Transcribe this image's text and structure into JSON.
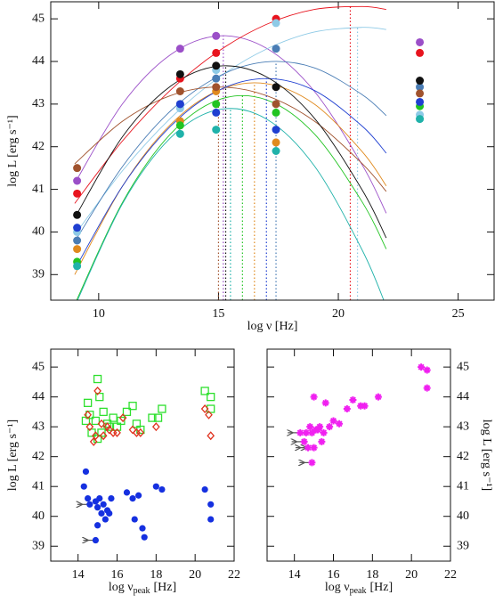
{
  "chart_data": [
    {
      "type": "line",
      "x_label": "log ν [Hz]",
      "y_label": "log L [erg s⁻¹]",
      "xlim": [
        8,
        26.5
      ],
      "ylim": [
        38.4,
        45.4
      ],
      "xticks": [
        10,
        15,
        20,
        25
      ],
      "yticks": [
        39,
        40,
        41,
        42,
        43,
        44,
        45
      ],
      "x": [
        9.1,
        13.4,
        14.9,
        17.4,
        23.4
      ],
      "fit_x": [
        9,
        11,
        13,
        15,
        17,
        19,
        21,
        22
      ],
      "series": [
        {
          "color": "#9b4fc8",
          "values": [
            41.2,
            44.3,
            44.6,
            null,
            44.45
          ],
          "fit": [
            41.14,
            43.01,
            44.16,
            44.6,
            44.31,
            43.3,
            41.57,
            40.44
          ],
          "peak_x": 15.2,
          "peak_y": 44.6
        },
        {
          "color": "#e8141e",
          "values": [
            40.9,
            43.6,
            44.2,
            45.0,
            44.2
          ],
          "fit": [
            40.67,
            42.14,
            43.33,
            44.24,
            44.87,
            45.22,
            45.29,
            45.22
          ],
          "peak_x": 20.5,
          "peak_y": 45.3
        },
        {
          "color": "#8ecae6",
          "values": [
            40.0,
            42.9,
            43.8,
            44.9,
            42.75
          ],
          "fit": [
            39.93,
            41.44,
            42.67,
            43.62,
            44.29,
            44.69,
            44.8,
            44.75
          ],
          "peak_x": 20.8,
          "peak_y": 44.8
        },
        {
          "color": "#4a7db5",
          "values": [
            39.8,
            43.0,
            43.6,
            44.3,
            43.4
          ],
          "fit": [
            39.77,
            41.54,
            42.84,
            43.65,
            43.99,
            43.85,
            43.22,
            42.73
          ],
          "peak_x": 17.4,
          "peak_y": 44.0
        },
        {
          "color": "#e08a1e",
          "values": [
            39.6,
            42.6,
            43.3,
            42.1,
            null
          ],
          "fit": [
            39.0,
            41.08,
            42.52,
            43.32,
            43.48,
            43.0,
            41.88,
            41.08
          ],
          "peak_x": 16.5,
          "peak_y": 43.5
        },
        {
          "color": "#22c422",
          "values": [
            39.3,
            42.5,
            43.0,
            42.8,
            42.95
          ],
          "fit": [
            38.3,
            40.7,
            42.3,
            43.1,
            43.1,
            42.3,
            40.7,
            39.6
          ],
          "peak_x": 16.0,
          "peak_y": 43.2
        },
        {
          "color": "#20b2aa",
          "values": [
            39.2,
            42.3,
            42.4,
            41.9,
            42.65
          ],
          "fit": [
            38.25,
            40.67,
            42.21,
            42.87,
            42.65,
            41.55,
            39.57,
            38.25
          ],
          "peak_x": 15.5,
          "peak_y": 42.9
        },
        {
          "color": "#a0522d",
          "values": [
            41.5,
            43.3,
            43.4,
            43.0,
            43.25
          ],
          "fit": [
            41.6,
            42.6,
            43.2,
            43.4,
            43.2,
            42.6,
            41.6,
            40.95
          ],
          "peak_x": 15.0,
          "peak_y": 43.4
        },
        {
          "color": "#1f3fd1",
          "values": [
            40.1,
            43.0,
            42.8,
            42.4,
            43.05
          ],
          "fit": [
            39.12,
            41.08,
            42.48,
            43.32,
            43.6,
            43.32,
            42.48,
            41.85
          ],
          "peak_x": 17.0,
          "peak_y": 43.6
        },
        {
          "color": "#111111",
          "values": [
            40.4,
            43.7,
            43.9,
            43.4,
            43.55
          ],
          "fit": [
            40.33,
            42.24,
            43.42,
            43.89,
            43.64,
            42.67,
            40.98,
            39.86
          ],
          "peak_x": 15.3,
          "peak_y": 43.9
        }
      ]
    },
    {
      "type": "scatter",
      "x_label": "log ν",
      "x_label_sub": "peak",
      "x_label_unit": "[Hz]",
      "y_label": "log L [erg s⁻¹]",
      "xlim": [
        12.6,
        22
      ],
      "ylim": [
        38.5,
        45.6
      ],
      "xticks": [
        14,
        16,
        18,
        20,
        22
      ],
      "yticks": [
        39,
        40,
        41,
        42,
        43,
        44,
        45
      ],
      "y_axis_side": "left",
      "series": [
        {
          "color": "#2ee02e",
          "marker": "square",
          "x": [
            15.0,
            15.1,
            14.5,
            14.6,
            14.9,
            15.3,
            15.5,
            15.8,
            16.0,
            16.5,
            16.8,
            17.0,
            17.2,
            17.8,
            18.1,
            18.3,
            20.5,
            20.8,
            20.8,
            14.7,
            15.2,
            15.6,
            14.4,
            16.2,
            15.0
          ],
          "y": [
            44.6,
            44.0,
            43.8,
            43.4,
            43.2,
            43.5,
            43.1,
            43.3,
            43.0,
            43.5,
            43.7,
            43.1,
            42.9,
            43.3,
            43.3,
            43.6,
            44.2,
            44.0,
            43.6,
            42.8,
            42.8,
            43.0,
            43.2,
            43.2,
            42.6
          ]
        },
        {
          "color": "#e0321e",
          "marker": "diamond",
          "x": [
            15.0,
            14.5,
            14.6,
            15.2,
            15.5,
            15.8,
            16.0,
            16.3,
            16.8,
            17.0,
            17.2,
            18.0,
            20.5,
            20.7,
            20.8,
            14.9,
            15.3,
            15.6,
            14.8
          ],
          "y": [
            44.2,
            43.4,
            43.0,
            43.1,
            43.0,
            42.8,
            42.8,
            43.3,
            42.9,
            42.8,
            42.8,
            43.0,
            43.6,
            43.4,
            42.7,
            42.7,
            42.7,
            42.9,
            42.5
          ]
        },
        {
          "color": "#1530e0",
          "marker": "circle",
          "x": [
            14.4,
            14.3,
            14.5,
            14.6,
            14.9,
            15.0,
            15.1,
            15.2,
            15.3,
            15.5,
            15.6,
            15.7,
            15.0,
            14.9,
            15.4,
            16.5,
            16.8,
            17.1,
            16.9,
            17.3,
            17.4,
            18.0,
            18.3,
            20.5,
            20.8,
            20.8
          ],
          "y": [
            41.5,
            41.0,
            40.6,
            40.4,
            40.5,
            40.3,
            40.6,
            40.1,
            40.4,
            40.2,
            40.1,
            40.6,
            39.7,
            39.2,
            39.9,
            40.8,
            40.6,
            40.7,
            39.9,
            39.6,
            39.3,
            41.0,
            40.9,
            40.9,
            40.4,
            39.9
          ],
          "x_upper_limit": [
            false,
            false,
            false,
            true,
            false,
            false,
            false,
            false,
            false,
            false,
            false,
            false,
            false,
            true,
            false,
            false,
            false,
            false,
            false,
            false,
            false,
            false,
            false,
            false,
            false,
            false
          ]
        }
      ]
    },
    {
      "type": "scatter",
      "x_label": "log ν",
      "x_label_sub": "peak",
      "x_label_unit": "[Hz]",
      "y_label": "log L [erg s⁻¹]",
      "xlim": [
        12.6,
        22
      ],
      "ylim": [
        38.5,
        45.6
      ],
      "xticks": [
        14,
        16,
        18,
        20,
        22
      ],
      "yticks": [
        39,
        40,
        41,
        42,
        43,
        44,
        45
      ],
      "y_axis_side": "right",
      "series": [
        {
          "color": "#f020f0",
          "marker": "asterisk",
          "x": [
            14.3,
            14.5,
            14.6,
            14.8,
            14.9,
            15.0,
            15.1,
            15.2,
            15.3,
            15.5,
            15.6,
            15.8,
            16.0,
            16.3,
            16.7,
            17.0,
            17.4,
            17.6,
            18.3,
            20.5,
            20.8,
            20.8,
            15.0,
            14.9,
            15.4,
            14.7
          ],
          "y": [
            42.8,
            42.5,
            42.8,
            43.0,
            42.8,
            44.0,
            42.9,
            42.9,
            43.0,
            42.8,
            43.8,
            43.0,
            43.2,
            43.1,
            43.6,
            43.9,
            43.7,
            43.7,
            44.0,
            45.0,
            44.9,
            44.3,
            42.3,
            41.8,
            42.5,
            42.3
          ],
          "x_upper_limit": [
            true,
            true,
            false,
            false,
            false,
            false,
            false,
            false,
            false,
            false,
            false,
            false,
            false,
            false,
            false,
            false,
            false,
            false,
            false,
            false,
            false,
            false,
            true,
            true,
            false,
            true
          ]
        }
      ]
    }
  ]
}
